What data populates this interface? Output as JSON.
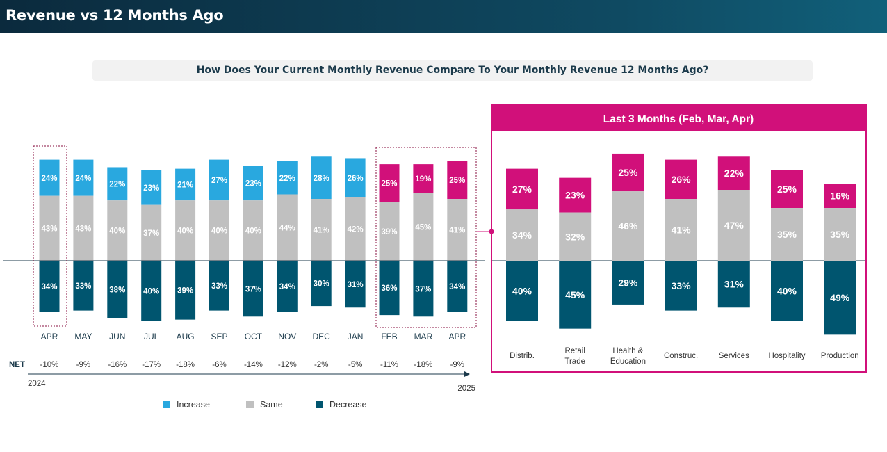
{
  "page_title": "Revenue vs 12 Months Ago",
  "question": "How Does Your Current Monthly Revenue Compare To Your Monthly Revenue 12 Months Ago?",
  "colors": {
    "increase": "#29a8df",
    "same": "#c0c0c0",
    "decrease": "#00556f",
    "highlight": "#d1107a",
    "header_bg": "#0b2a3d"
  },
  "chart_data": [
    {
      "type": "bar",
      "stacked": true,
      "categories": [
        "APR",
        "MAY",
        "JUN",
        "JUL",
        "AUG",
        "SEP",
        "OCT",
        "NOV",
        "DEC",
        "JAN",
        "FEB",
        "MAR",
        "APR"
      ],
      "series": [
        {
          "name": "Increase",
          "values": [
            24,
            24,
            22,
            23,
            21,
            27,
            23,
            22,
            28,
            26,
            25,
            19,
            25
          ]
        },
        {
          "name": "Same",
          "values": [
            43,
            43,
            40,
            37,
            40,
            40,
            40,
            44,
            41,
            42,
            39,
            45,
            41
          ]
        },
        {
          "name": "Decrease",
          "values": [
            34,
            33,
            38,
            40,
            39,
            33,
            37,
            34,
            30,
            31,
            36,
            37,
            34
          ]
        }
      ],
      "net_label": "NET",
      "net": [
        "-10%",
        "-9%",
        "-16%",
        "-17%",
        "-18%",
        "-6%",
        "-14%",
        "-12%",
        "-2%",
        "-5%",
        "-11%",
        "-18%",
        "-9%"
      ],
      "start_year": "2024",
      "end_year": "2025",
      "legend": [
        "Increase",
        "Same",
        "Decrease"
      ],
      "legend_position": "bottom"
    },
    {
      "type": "bar",
      "stacked": true,
      "title": "Last 3 Months (Feb, Mar, Apr)",
      "categories": [
        "Distrib.",
        "Retail Trade",
        "Health & Education",
        "Construc.",
        "Services",
        "Hospitality",
        "Production"
      ],
      "series": [
        {
          "name": "Increase",
          "values": [
            27,
            23,
            25,
            26,
            22,
            25,
            16
          ]
        },
        {
          "name": "Same",
          "values": [
            34,
            32,
            46,
            41,
            47,
            35,
            35
          ]
        },
        {
          "name": "Decrease",
          "values": [
            40,
            45,
            29,
            33,
            31,
            40,
            49
          ]
        }
      ]
    }
  ]
}
